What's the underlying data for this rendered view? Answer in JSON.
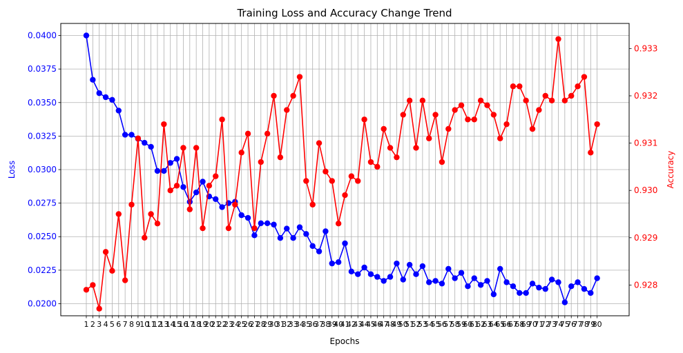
{
  "chart_data": {
    "type": "line",
    "title": "Training Loss and Accuracy Change Trend",
    "xlabel": "Epochs",
    "x": [
      1,
      2,
      3,
      4,
      5,
      6,
      7,
      8,
      9,
      10,
      11,
      12,
      13,
      14,
      15,
      16,
      17,
      18,
      19,
      20,
      21,
      22,
      23,
      24,
      25,
      26,
      27,
      28,
      29,
      30,
      31,
      32,
      33,
      34,
      35,
      36,
      37,
      38,
      39,
      40,
      41,
      42,
      43,
      44,
      45,
      46,
      47,
      48,
      49,
      50,
      51,
      52,
      53,
      54,
      55,
      56,
      57,
      58,
      59,
      60,
      61,
      62,
      63,
      64,
      65,
      66,
      67,
      68,
      69,
      70,
      71,
      72,
      73,
      74,
      75,
      76,
      77,
      78,
      79,
      80
    ],
    "xlim": [
      -2.95,
      84.95
    ],
    "grid": true,
    "axes": {
      "left": {
        "label": "Loss",
        "color": "#0000ff",
        "ylim": [
          0.0191,
          0.0409
        ],
        "ticks": [
          0.02,
          0.0225,
          0.025,
          0.0275,
          0.03,
          0.0325,
          0.035,
          0.0375,
          0.04
        ],
        "tick_labels": [
          "0.0200",
          "0.0225",
          "0.0250",
          "0.0275",
          "0.0300",
          "0.0325",
          "0.0350",
          "0.0375",
          "0.0400"
        ]
      },
      "right": {
        "label": "Accuracy",
        "color": "#ff0000",
        "ylim": [
          0.92735,
          0.93353
        ],
        "ticks": [
          0.928,
          0.929,
          0.93,
          0.931,
          0.932,
          0.933
        ],
        "tick_labels": [
          "0.928",
          "0.929",
          "0.930",
          "0.931",
          "0.932",
          "0.933"
        ]
      }
    },
    "series": [
      {
        "axis": "left",
        "color": "#0000ff",
        "values": [
          0.04,
          0.0367,
          0.0357,
          0.0354,
          0.0352,
          0.0344,
          0.0326,
          0.0326,
          0.0323,
          0.032,
          0.0317,
          0.0299,
          0.0299,
          0.0305,
          0.0308,
          0.0287,
          0.0276,
          0.0283,
          0.0291,
          0.028,
          0.0278,
          0.0272,
          0.0275,
          0.0276,
          0.0266,
          0.0264,
          0.0251,
          0.026,
          0.026,
          0.0259,
          0.0249,
          0.0256,
          0.0249,
          0.0257,
          0.0252,
          0.0243,
          0.0239,
          0.0254,
          0.023,
          0.0231,
          0.0245,
          0.0224,
          0.0222,
          0.0227,
          0.0222,
          0.022,
          0.0217,
          0.022,
          0.023,
          0.0218,
          0.0229,
          0.0222,
          0.0228,
          0.0216,
          0.0217,
          0.0215,
          0.0226,
          0.0219,
          0.0223,
          0.0213,
          0.0219,
          0.0214,
          0.0217,
          0.0207,
          0.0226,
          0.0216,
          0.0213,
          0.0208,
          0.0208,
          0.0215,
          0.0212,
          0.0211,
          0.0218,
          0.0216,
          0.0201,
          0.0213,
          0.0216,
          0.0211,
          0.0208,
          0.0219
        ]
      },
      {
        "axis": "right",
        "color": "#ff0000",
        "values": [
          0.9279,
          0.928,
          0.9275,
          0.9287,
          0.9283,
          0.9295,
          0.9281,
          0.9297,
          0.9311,
          0.929,
          0.9295,
          0.9293,
          0.9314,
          0.93,
          0.9301,
          0.9309,
          0.9296,
          0.9309,
          0.9292,
          0.9301,
          0.9303,
          0.9315,
          0.9292,
          0.9297,
          0.9308,
          0.9312,
          0.9292,
          0.9306,
          0.9312,
          0.932,
          0.9307,
          0.9317,
          0.932,
          0.9324,
          0.9302,
          0.9297,
          0.931,
          0.9304,
          0.9302,
          0.9293,
          0.9299,
          0.9303,
          0.9302,
          0.9315,
          0.9306,
          0.9305,
          0.9313,
          0.9309,
          0.9307,
          0.9316,
          0.9319,
          0.9309,
          0.9319,
          0.9311,
          0.9316,
          0.9306,
          0.9313,
          0.9317,
          0.9318,
          0.9315,
          0.9315,
          0.9319,
          0.9318,
          0.9316,
          0.9311,
          0.9314,
          0.9322,
          0.9322,
          0.9319,
          0.9313,
          0.9317,
          0.932,
          0.9319,
          0.9332,
          0.9319,
          0.932,
          0.9322,
          0.9324,
          0.9308,
          0.9314
        ]
      }
    ]
  }
}
